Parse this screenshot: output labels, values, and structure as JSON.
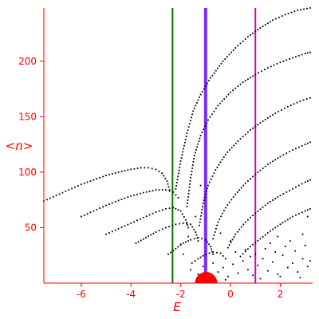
{
  "chart_data": {
    "type": "scatter",
    "xlabel": "E",
    "ylabel": "<n>",
    "xlim": [
      -7.5,
      3.3
    ],
    "ylim": [
      0,
      248
    ],
    "x_ticks": [
      -6,
      -4,
      -2,
      0,
      2
    ],
    "x_tick_labels": [
      "-6",
      "-4",
      "-2",
      "0",
      "2"
    ],
    "y_ticks": [
      50,
      100,
      150,
      200
    ],
    "y_tick_labels": [
      "50",
      "100",
      "150",
      "200"
    ],
    "grid": false,
    "axis_color": "#ff0000",
    "point_color": "#000000",
    "vertical_lines": [
      {
        "x": -2.33,
        "color": "#007700"
      },
      {
        "x": -1.0,
        "color": "#7a2bff"
      },
      {
        "x": 1.0,
        "color": "#cc00cc"
      }
    ],
    "ground_state_marker": {
      "x": -0.98,
      "y": 0,
      "color": "#ff0000"
    },
    "series": [
      {
        "points": [
          [
            -7.5,
            74
          ],
          [
            -7,
            79
          ],
          [
            -6.5,
            84
          ],
          [
            -6,
            89
          ],
          [
            -5.5,
            93
          ],
          [
            -5,
            97
          ],
          [
            -4.5,
            100
          ],
          [
            -4,
            102.5
          ],
          [
            -3.6,
            104
          ],
          [
            -3.3,
            104
          ],
          [
            -3,
            102.5
          ],
          [
            -2.75,
            99
          ],
          [
            -2.55,
            92
          ],
          [
            -2.45,
            84
          ]
        ]
      },
      {
        "points": [
          [
            -6,
            60
          ],
          [
            -5.5,
            65
          ],
          [
            -5,
            70
          ],
          [
            -4.5,
            74.5
          ],
          [
            -4,
            78.5
          ],
          [
            -3.5,
            81.5
          ],
          [
            -3,
            84
          ],
          [
            -2.6,
            84
          ],
          [
            -2.3,
            82
          ],
          [
            -2.1,
            77
          ]
        ]
      },
      {
        "points": [
          [
            -5,
            44
          ],
          [
            -4.5,
            49
          ],
          [
            -4,
            54
          ],
          [
            -3.5,
            59
          ],
          [
            -3,
            64
          ],
          [
            -2.6,
            67
          ],
          [
            -2.3,
            68
          ],
          [
            -2,
            65
          ],
          [
            -1.8,
            57
          ],
          [
            -1.7,
            50
          ]
        ]
      },
      {
        "points": [
          [
            -3.8,
            36
          ],
          [
            -3.4,
            41
          ],
          [
            -3,
            46
          ],
          [
            -2.6,
            50
          ],
          [
            -2.2,
            53
          ],
          [
            -1.9,
            54
          ],
          [
            -1.6,
            53
          ],
          [
            -1.4,
            46
          ],
          [
            -1.3,
            38
          ]
        ]
      },
      {
        "points": [
          [
            -2.5,
            26
          ],
          [
            -2.2,
            31
          ],
          [
            -1.9,
            36
          ],
          [
            -1.6,
            39
          ],
          [
            -1.3,
            41
          ],
          [
            -1,
            39
          ],
          [
            -0.8,
            33
          ],
          [
            -0.7,
            26
          ]
        ]
      },
      {
        "points": [
          [
            -1.55,
            18
          ],
          [
            -1.3,
            22
          ],
          [
            -1,
            26
          ],
          [
            -0.7,
            28
          ],
          [
            -0.4,
            27
          ],
          [
            -0.2,
            22
          ]
        ]
      },
      {
        "points": [
          [
            -2.2,
            85
          ],
          [
            -2.0,
            110
          ],
          [
            -1.75,
            135
          ],
          [
            -1.5,
            155
          ],
          [
            -1.2,
            170
          ],
          [
            -0.8,
            185
          ],
          [
            -0.3,
            200
          ],
          [
            0.2,
            212
          ],
          [
            0.7,
            222
          ],
          [
            1.2,
            230
          ],
          [
            1.7,
            237
          ],
          [
            2.2,
            242
          ],
          [
            2.7,
            246
          ],
          [
            3.2,
            248
          ]
        ]
      },
      {
        "points": [
          [
            -1.75,
            69
          ],
          [
            -1.6,
            95
          ],
          [
            -1.45,
            115
          ],
          [
            -1.2,
            133
          ],
          [
            -0.9,
            147
          ],
          [
            -0.5,
            160
          ],
          [
            0,
            172
          ],
          [
            0.5,
            181
          ],
          [
            1,
            188
          ],
          [
            1.5,
            194
          ],
          [
            2,
            199
          ],
          [
            2.5,
            203
          ],
          [
            3,
            207
          ],
          [
            3.2,
            208
          ]
        ]
      },
      {
        "points": [
          [
            -1.25,
            52
          ],
          [
            -1.1,
            72
          ],
          [
            -0.9,
            88
          ],
          [
            -0.6,
            102
          ],
          [
            -0.2,
            116
          ],
          [
            0.3,
            128
          ],
          [
            0.8,
            138
          ],
          [
            1.3,
            146
          ],
          [
            1.8,
            153
          ],
          [
            2.3,
            159
          ],
          [
            2.8,
            164
          ],
          [
            3.2,
            167
          ]
        ]
      },
      {
        "points": [
          [
            -0.7,
            40
          ],
          [
            -0.5,
            55
          ],
          [
            -0.2,
            68
          ],
          [
            0.2,
            80
          ],
          [
            0.6,
            90
          ],
          [
            1,
            98
          ],
          [
            1.5,
            107
          ],
          [
            2,
            114
          ],
          [
            2.5,
            120
          ],
          [
            3,
            125
          ],
          [
            3.2,
            127
          ]
        ]
      },
      {
        "points": [
          [
            -0.1,
            32
          ],
          [
            0.2,
            44
          ],
          [
            0.6,
            55
          ],
          [
            1,
            63
          ],
          [
            1.5,
            72
          ],
          [
            2,
            79
          ],
          [
            2.5,
            85
          ],
          [
            3,
            91
          ],
          [
            3.2,
            93
          ]
        ]
      },
      {
        "points": [
          [
            0.4,
            24
          ],
          [
            0.8,
            33
          ],
          [
            1.2,
            40
          ],
          [
            1.6,
            47
          ],
          [
            2,
            53
          ],
          [
            2.5,
            60
          ],
          [
            3,
            65
          ],
          [
            3.2,
            67
          ]
        ]
      }
    ],
    "scatter_cloud": [
      [
        -1.6,
        12
      ],
      [
        -1.3,
        8
      ],
      [
        -1.1,
        15
      ],
      [
        -0.9,
        5
      ],
      [
        -0.7,
        18
      ],
      [
        -0.5,
        10
      ],
      [
        -0.3,
        14
      ],
      [
        -0.1,
        6
      ],
      [
        0.1,
        17
      ],
      [
        0.3,
        9
      ],
      [
        0.5,
        20
      ],
      [
        0.7,
        12
      ],
      [
        0.9,
        7
      ],
      [
        1.1,
        16
      ],
      [
        1.3,
        22
      ],
      [
        1.5,
        11
      ],
      [
        1.7,
        19
      ],
      [
        1.9,
        8
      ],
      [
        2.1,
        25
      ],
      [
        2.3,
        14
      ],
      [
        2.5,
        18
      ],
      [
        2.7,
        10
      ],
      [
        2.9,
        22
      ],
      [
        3.1,
        15
      ],
      [
        0.2,
        28
      ],
      [
        0.6,
        30
      ],
      [
        1.0,
        26
      ],
      [
        1.4,
        31
      ],
      [
        1.8,
        28
      ],
      [
        2.2,
        33
      ],
      [
        2.6,
        29
      ],
      [
        3.0,
        34
      ],
      [
        1.2,
        4
      ],
      [
        2.0,
        6
      ],
      [
        2.8,
        5
      ],
      [
        -0.2,
        3
      ],
      [
        0.8,
        24
      ],
      [
        1.6,
        36
      ],
      [
        2.4,
        38
      ],
      [
        3.2,
        20
      ],
      [
        -1.9,
        26
      ],
      [
        -2.0,
        35
      ],
      [
        -1.7,
        42
      ],
      [
        -1.4,
        60
      ],
      [
        -1.2,
        88
      ],
      [
        -0.4,
        45
      ],
      [
        0.0,
        38
      ],
      [
        1.9,
        42
      ],
      [
        2.9,
        44
      ],
      [
        3.1,
        60
      ]
    ]
  }
}
